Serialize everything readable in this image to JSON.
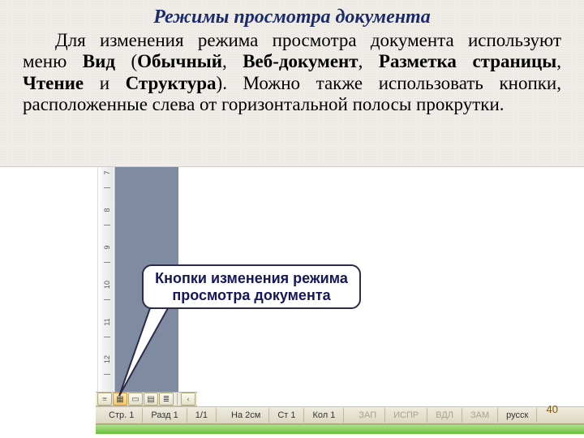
{
  "title": "Режимы просмотра документа",
  "paragraph_parts": {
    "p1": "Для изменения режима просмотра документа используют меню ",
    "b1": "Вид",
    "p2": " (",
    "b2": "Обычный",
    "p3": ", ",
    "b3": "Веб-документ",
    "p4": ", ",
    "b4": "Разметка страницы",
    "p5": ", ",
    "b5": "Чтение",
    "p6": " и ",
    "b6": "Структура",
    "p7": "). Можно также использовать кнопки, расположенные слева от горизонтальной полосы прокрутки."
  },
  "callout_line1": "Кнопки изменения режима",
  "callout_line2": "просмотра документа",
  "ruler_numbers": [
    "7",
    "8",
    "9",
    "10",
    "11",
    "12"
  ],
  "status": {
    "page_label": "Стр.",
    "page_val": "1",
    "section_label": "Разд",
    "section_val": "1",
    "pages": "1/1",
    "at": "На 2см",
    "line": "Ст 1",
    "col": "Кол 1",
    "zap": "ЗАП",
    "ispr": "ИСПР",
    "vdl": "ВДЛ",
    "zam": "ЗАМ",
    "lang": "русск"
  },
  "page_number": "40",
  "colors": {
    "title": "#1a2b6b",
    "grey_panel": "#7f8ba0",
    "callout_border": "#2b2b4a",
    "green1": "#aee08a",
    "green2": "#6bbf3f"
  },
  "view_buttons": [
    {
      "name": "normal-view",
      "glyph": "≡",
      "active": false
    },
    {
      "name": "web-layout-view",
      "glyph": "▦",
      "active": true
    },
    {
      "name": "print-layout-view",
      "glyph": "▭",
      "active": false
    },
    {
      "name": "reading-view",
      "glyph": "▤",
      "active": false
    },
    {
      "name": "outline-view",
      "glyph": "≣",
      "active": false
    }
  ]
}
